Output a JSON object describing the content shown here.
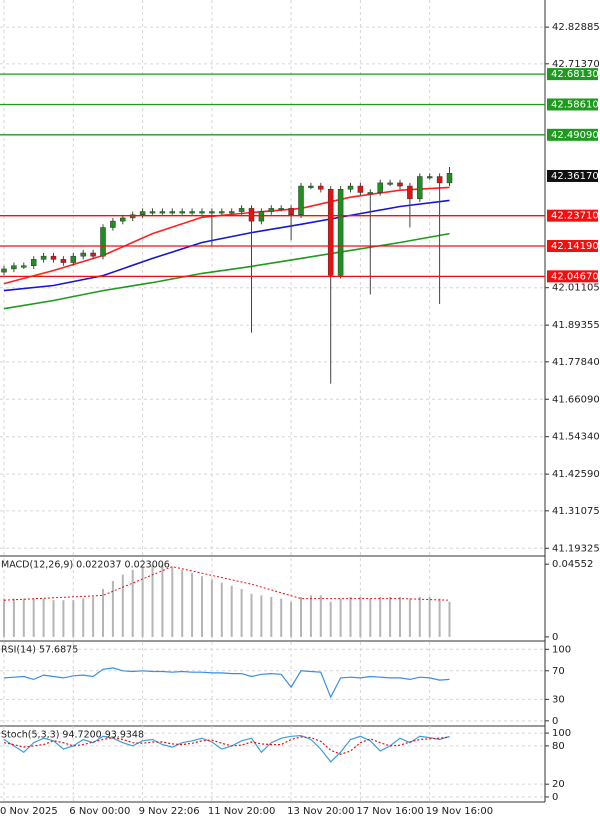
{
  "chart_data": {
    "type": "candlestick",
    "categories": [
      "0 Nov 2025",
      null,
      null,
      null,
      null,
      null,
      null,
      "6 Nov 00:00",
      null,
      null,
      null,
      null,
      null,
      null,
      "9 Nov 22:06",
      null,
      null,
      null,
      null,
      null,
      null,
      "11 Nov 20:00",
      null,
      null,
      null,
      null,
      null,
      null,
      null,
      "13 Nov 20:00",
      null,
      null,
      null,
      null,
      null,
      null,
      "17 Nov 16:00",
      null,
      null,
      null,
      null,
      null,
      null,
      "19 Nov 16:00",
      null,
      null
    ],
    "open": [
      42.06,
      42.07,
      42.08,
      42.08,
      42.1,
      42.11,
      42.1,
      42.09,
      42.11,
      42.12,
      42.11,
      42.2,
      42.22,
      42.23,
      42.24,
      42.25,
      42.25,
      42.25,
      42.25,
      42.25,
      42.25,
      42.25,
      42.25,
      42.25,
      42.25,
      42.26,
      42.22,
      42.25,
      42.26,
      42.26,
      42.24,
      42.33,
      42.33,
      42.32,
      42.05,
      42.32,
      42.33,
      42.31,
      42.31,
      42.34,
      42.34,
      42.33,
      42.29,
      42.36,
      42.36,
      42.34
    ],
    "high": [
      42.08,
      42.09,
      42.09,
      42.11,
      42.12,
      42.12,
      42.11,
      42.12,
      42.13,
      42.13,
      42.21,
      42.23,
      42.24,
      42.25,
      42.26,
      42.26,
      42.26,
      42.26,
      42.26,
      42.26,
      42.26,
      42.26,
      42.26,
      42.26,
      42.27,
      42.27,
      42.26,
      42.27,
      42.27,
      42.27,
      42.34,
      42.34,
      42.34,
      42.33,
      42.33,
      42.34,
      42.34,
      42.32,
      42.35,
      42.35,
      42.35,
      42.34,
      42.37,
      42.37,
      42.37,
      42.39
    ],
    "low": [
      42.05,
      42.06,
      42.07,
      42.07,
      42.09,
      42.09,
      42.08,
      42.08,
      42.1,
      42.1,
      42.1,
      42.19,
      42.21,
      42.22,
      42.23,
      42.24,
      42.24,
      42.24,
      42.24,
      42.24,
      42.24,
      42.14,
      42.24,
      42.24,
      42.24,
      41.87,
      42.21,
      42.24,
      42.25,
      42.16,
      42.23,
      42.32,
      42.31,
      41.71,
      42.04,
      42.31,
      42.3,
      41.99,
      42.3,
      42.33,
      42.32,
      42.2,
      42.28,
      42.35,
      41.96,
      42.33
    ],
    "close": [
      42.07,
      42.08,
      42.08,
      42.1,
      42.11,
      42.1,
      42.09,
      42.11,
      42.12,
      42.11,
      42.2,
      42.22,
      42.23,
      42.24,
      42.25,
      42.25,
      42.25,
      42.25,
      42.25,
      42.25,
      42.25,
      42.25,
      42.25,
      42.25,
      42.26,
      42.22,
      42.25,
      42.26,
      42.26,
      42.24,
      42.33,
      42.33,
      42.32,
      42.05,
      42.32,
      42.33,
      42.31,
      42.31,
      42.34,
      42.34,
      42.33,
      42.29,
      42.36,
      42.36,
      42.34,
      42.37
    ],
    "up_color": "#1f8f1f",
    "down_color": "#e81010",
    "ylim": [
      41.169,
      42.914
    ],
    "yticks": [
      42.82885,
      {
        "value": 42.7137,
        "label": "42.71370"
      },
      42.01105,
      41.89355,
      {
        "value": 41.7784,
        "label": "41.77840"
      },
      {
        "value": 41.6609,
        "label": "41.66090"
      },
      {
        "value": 41.5434,
        "label": "41.54340"
      },
      {
        "value": 41.4259,
        "label": "41.42590"
      },
      41.31075,
      41.19325
    ],
    "grid": true,
    "moving_averages": [
      {
        "color": "#ff2020",
        "x": [
          0,
          5,
          10,
          15,
          20,
          25,
          30,
          35,
          40,
          45
        ],
        "values": [
          42.024,
          42.065,
          42.112,
          42.181,
          42.232,
          42.247,
          42.26,
          42.295,
          42.317,
          42.326
        ]
      },
      {
        "color": "#1515d8",
        "x": [
          0,
          5,
          10,
          15,
          20,
          25,
          30,
          35,
          40,
          45
        ],
        "values": [
          42.002,
          42.018,
          42.049,
          42.103,
          42.153,
          42.184,
          42.21,
          42.238,
          42.266,
          42.285
        ]
      },
      {
        "color": "#1e9a1e",
        "x": [
          0,
          5,
          10,
          15,
          20,
          25,
          30,
          35,
          40,
          45
        ],
        "values": [
          41.945,
          41.971,
          42.002,
          42.027,
          42.056,
          42.078,
          42.103,
          42.128,
          42.153,
          42.181
        ]
      }
    ],
    "levels": [
      {
        "value": 42.6813,
        "label": "42.68130",
        "color": "#1e9a1e"
      },
      {
        "value": 42.5861,
        "label": "42.58610",
        "color": "#1e9a1e"
      },
      {
        "value": 42.4909,
        "label": "42.49090",
        "color": "#1e9a1e"
      },
      {
        "value": 42.2371,
        "label": "42.23710",
        "color": "#f01010"
      },
      {
        "value": 42.1419,
        "label": "42.14190",
        "color": "#f01010"
      },
      {
        "value": 42.0467,
        "label": "42.04670",
        "color": "#f01010"
      }
    ],
    "last_price": {
      "value": 42.3617,
      "label": "42.36170"
    },
    "indicators": [
      {
        "type": "macd",
        "title": "MACD(12,26,9) 0.022037 0.023006",
        "ylim": [
          -0.00256,
          0.05065
        ],
        "yticks": [
          0.04552,
          0
        ],
        "histogram": [
          0.024,
          0.024,
          0.024,
          0.024,
          0.024,
          0.023,
          0.023,
          0.023,
          0.024,
          0.025,
          0.03,
          0.035,
          0.039,
          0.042,
          0.044,
          0.045,
          0.045,
          0.044,
          0.042,
          0.04,
          0.038,
          0.036,
          0.034,
          0.032,
          0.03,
          0.027,
          0.026,
          0.025,
          0.024,
          0.022,
          0.025,
          0.026,
          0.026,
          0.022,
          0.024,
          0.025,
          0.025,
          0.024,
          0.025,
          0.025,
          0.025,
          0.024,
          0.025,
          0.025,
          0.024,
          0.022
        ],
        "signal": {
          "color": "#e81010",
          "x": [
            0,
            10,
            17,
            25,
            30,
            40,
            45
          ],
          "values": [
            0.023,
            0.026,
            0.044,
            0.033,
            0.024,
            0.024,
            0.023
          ]
        }
      },
      {
        "type": "rsi",
        "title": "RSI(14) 57.6875",
        "ylim": [
          -7.2,
          111.6
        ],
        "yticks": [
          100,
          70,
          30,
          0
        ],
        "lines": [
          {
            "color": "#3a8ee6",
            "values": [
              60,
              61,
              62,
              58,
              64,
              62,
              60,
              63,
              64,
              62,
              72,
              74,
              70,
              69,
              70,
              69,
              69,
              68,
              69,
              68,
              68,
              67,
              67,
              66,
              66,
              62,
              65,
              66,
              65,
              47,
              70,
              69,
              68,
              33,
              60,
              61,
              60,
              62,
              61,
              60,
              60,
              58,
              61,
              60,
              57,
              58
            ]
          }
        ]
      },
      {
        "type": "stoch",
        "title": "Stoch(5,3,3) 94.7200 93.9348",
        "ylim": [
          -7.9,
          111.1
        ],
        "yticks": [
          100,
          80,
          20,
          0
        ],
        "lines": [
          {
            "color": "#3aa0d8",
            "values": [
              90,
              80,
              70,
              85,
              92,
              88,
              75,
              80,
              90,
              85,
              95,
              92,
              85,
              80,
              88,
              90,
              82,
              78,
              85,
              88,
              92,
              86,
              75,
              80,
              88,
              92,
              70,
              85,
              92,
              95,
              96,
              90,
              75,
              55,
              70,
              90,
              95,
              88,
              72,
              80,
              92,
              85,
              95,
              93,
              90,
              94.72
            ]
          },
          {
            "color": "#e81010",
            "dashed": true,
            "values": [
              85,
              82,
              78,
              80,
              82,
              88,
              85,
              80,
              82,
              86,
              90,
              93,
              90,
              85,
              84,
              86,
              86,
              83,
              82,
              84,
              88,
              89,
              84,
              80,
              81,
              86,
              83,
              82,
              82,
              90,
              94,
              93,
              87,
              73,
              67,
              72,
              85,
              91,
              85,
              80,
              81,
              86,
              90,
              91,
              92,
              93.93
            ]
          }
        ]
      }
    ]
  }
}
